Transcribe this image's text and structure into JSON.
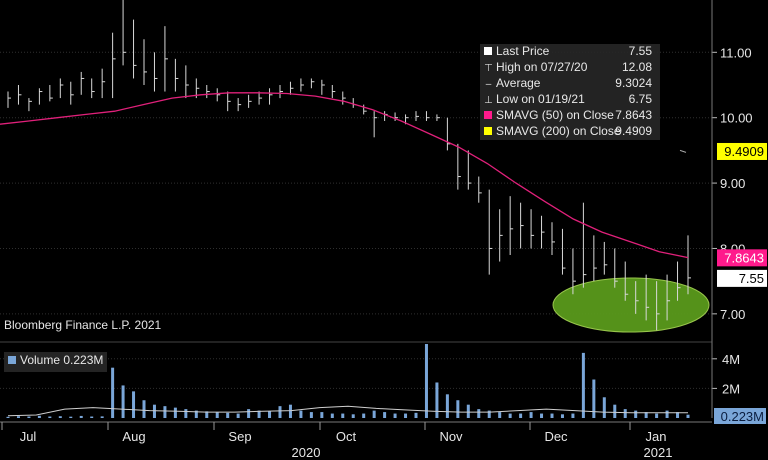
{
  "chart_data": {
    "type": "bar",
    "legend": {
      "rows": [
        {
          "label": "Last Price",
          "value": "7.55",
          "glyph": "white-square-icon",
          "color": "#ffffff"
        },
        {
          "label": "High on 07/27/20",
          "value": "12.08",
          "glyph": "up-tick-icon",
          "color": ""
        },
        {
          "label": "Average",
          "value": "9.3024",
          "glyph": "dash-icon",
          "color": ""
        },
        {
          "label": "Low on 01/19/21",
          "value": "6.75",
          "glyph": "down-tick-icon",
          "color": ""
        },
        {
          "label": "SMAVG (50)  on Close",
          "value": "7.8643",
          "glyph": "magenta-square-icon",
          "color": "#ff1a8c"
        },
        {
          "label": "SMAVG (200)  on Close",
          "value": "9.4909",
          "glyph": "yellow-square-icon",
          "color": "#ffff00"
        }
      ]
    },
    "source": "Bloomberg Finance L.P. 2021",
    "price_axis": {
      "ticks": [
        "11.00",
        "10.00",
        "9.00",
        "8.00",
        "7.00"
      ],
      "range": [
        6.6,
        11.8
      ]
    },
    "value_badges": [
      {
        "label": "9.4909",
        "value": 9.4909,
        "bg": "#ffff00",
        "fg": "#000000"
      },
      {
        "label": "7.8643",
        "value": 7.8643,
        "bg": "#ff1a8c",
        "fg": "#ffffff"
      },
      {
        "label": "7.55",
        "value": 7.55,
        "bg": "#ffffff",
        "fg": "#000000"
      }
    ],
    "volume_legend": "Volume  0.223M",
    "volume_axis": {
      "ticks": [
        "4M",
        "2M"
      ],
      "range": [
        0,
        5
      ],
      "unit": "M",
      "last_label": "0.223M"
    },
    "x_axis": {
      "months": [
        "Jul",
        "Aug",
        "Sep",
        "Oct",
        "Nov",
        "Dec",
        "Jan"
      ],
      "years": [
        "2020",
        "2021"
      ]
    },
    "highlight": "green-ellipse",
    "bars": [
      [
        10.4,
        10.15,
        10.3
      ],
      [
        10.5,
        10.2,
        10.35
      ],
      [
        10.3,
        10.1,
        10.25
      ],
      [
        10.45,
        10.2,
        10.4
      ],
      [
        10.5,
        10.25,
        10.3
      ],
      [
        10.6,
        10.3,
        10.5
      ],
      [
        10.55,
        10.2,
        10.35
      ],
      [
        10.7,
        10.35,
        10.6
      ],
      [
        10.6,
        10.3,
        10.4
      ],
      [
        10.75,
        10.3,
        10.55
      ],
      [
        11.3,
        10.3,
        10.9
      ],
      [
        12.08,
        10.8,
        11.0
      ],
      [
        11.5,
        10.6,
        10.8
      ],
      [
        11.2,
        10.5,
        10.7
      ],
      [
        11.0,
        10.4,
        10.6
      ],
      [
        11.4,
        10.4,
        10.9
      ],
      [
        10.9,
        10.4,
        10.6
      ],
      [
        10.8,
        10.3,
        10.5
      ],
      [
        10.6,
        10.3,
        10.45
      ],
      [
        10.5,
        10.3,
        10.4
      ],
      [
        10.45,
        10.25,
        10.35
      ],
      [
        10.4,
        10.1,
        10.25
      ],
      [
        10.3,
        10.1,
        10.2
      ],
      [
        10.35,
        10.15,
        10.25
      ],
      [
        10.4,
        10.2,
        10.3
      ],
      [
        10.45,
        10.2,
        10.35
      ],
      [
        10.5,
        10.3,
        10.4
      ],
      [
        10.55,
        10.35,
        10.45
      ],
      [
        10.6,
        10.4,
        10.5
      ],
      [
        10.6,
        10.45,
        10.55
      ],
      [
        10.58,
        10.35,
        10.5
      ],
      [
        10.5,
        10.3,
        10.4
      ],
      [
        10.4,
        10.2,
        10.3
      ],
      [
        10.3,
        10.15,
        10.2
      ],
      [
        10.2,
        10.05,
        10.1
      ],
      [
        10.1,
        9.7,
        10.0
      ],
      [
        10.1,
        9.95,
        10.05
      ],
      [
        10.08,
        9.95,
        10.0
      ],
      [
        10.05,
        9.9,
        10.0
      ],
      [
        10.1,
        9.95,
        10.02
      ],
      [
        10.1,
        9.95,
        10.0
      ],
      [
        10.05,
        9.95,
        10.0
      ],
      [
        10.0,
        9.5,
        9.6
      ],
      [
        9.6,
        8.9,
        9.1
      ],
      [
        9.5,
        8.9,
        9.0
      ],
      [
        9.1,
        8.7,
        8.85
      ],
      [
        8.9,
        7.6,
        8.0
      ],
      [
        8.6,
        7.8,
        8.2
      ],
      [
        8.8,
        7.9,
        8.3
      ],
      [
        8.7,
        8.0,
        8.35
      ],
      [
        8.6,
        8.0,
        8.2
      ],
      [
        8.5,
        8.0,
        8.25
      ],
      [
        8.4,
        7.9,
        8.1
      ],
      [
        8.3,
        7.6,
        7.7
      ],
      [
        8.0,
        7.3,
        7.5
      ],
      [
        8.7,
        7.4,
        7.6
      ],
      [
        8.2,
        7.5,
        7.7
      ],
      [
        8.1,
        7.6,
        7.75
      ],
      [
        8.0,
        7.4,
        7.5
      ],
      [
        7.8,
        7.2,
        7.3
      ],
      [
        7.5,
        7.0,
        7.2
      ],
      [
        7.6,
        6.9,
        7.1
      ],
      [
        7.5,
        6.75,
        7.0
      ],
      [
        7.6,
        6.9,
        7.2
      ],
      [
        7.8,
        7.2,
        7.4
      ],
      [
        8.2,
        7.3,
        7.55
      ]
    ],
    "volume": [
      0.08,
      0.12,
      0.1,
      0.15,
      0.1,
      0.12,
      0.09,
      0.14,
      0.1,
      0.11,
      3.4,
      2.2,
      1.8,
      1.2,
      0.9,
      0.8,
      0.7,
      0.6,
      0.5,
      0.45,
      0.4,
      0.35,
      0.3,
      0.6,
      0.5,
      0.45,
      0.8,
      0.9,
      0.5,
      0.4,
      0.4,
      0.3,
      0.3,
      0.25,
      0.3,
      0.5,
      0.4,
      0.3,
      0.3,
      0.35,
      5.0,
      2.4,
      1.6,
      1.2,
      0.9,
      0.6,
      0.5,
      0.4,
      0.3,
      0.3,
      0.4,
      0.3,
      0.3,
      0.25,
      0.3,
      4.4,
      2.6,
      1.4,
      0.9,
      0.6,
      0.5,
      0.4,
      0.3,
      0.5,
      0.4,
      0.223
    ],
    "sma50": [
      9.9,
      9.95,
      10.0,
      10.05,
      10.1,
      10.2,
      10.3,
      10.35,
      10.38,
      10.38,
      10.37,
      10.33,
      10.25,
      10.12,
      9.95,
      9.75,
      9.55,
      9.3,
      9.0,
      8.72,
      8.45,
      8.25,
      8.1,
      7.95,
      7.86
    ],
    "vol_avg": [
      0.15,
      0.2,
      0.6,
      0.7,
      0.6,
      0.5,
      0.45,
      0.4,
      0.4,
      0.45,
      0.5,
      0.7,
      0.8,
      0.65,
      0.55,
      0.45,
      0.4,
      0.4,
      0.5,
      0.6,
      0.5,
      0.4,
      0.35,
      0.35,
      0.35
    ]
  }
}
